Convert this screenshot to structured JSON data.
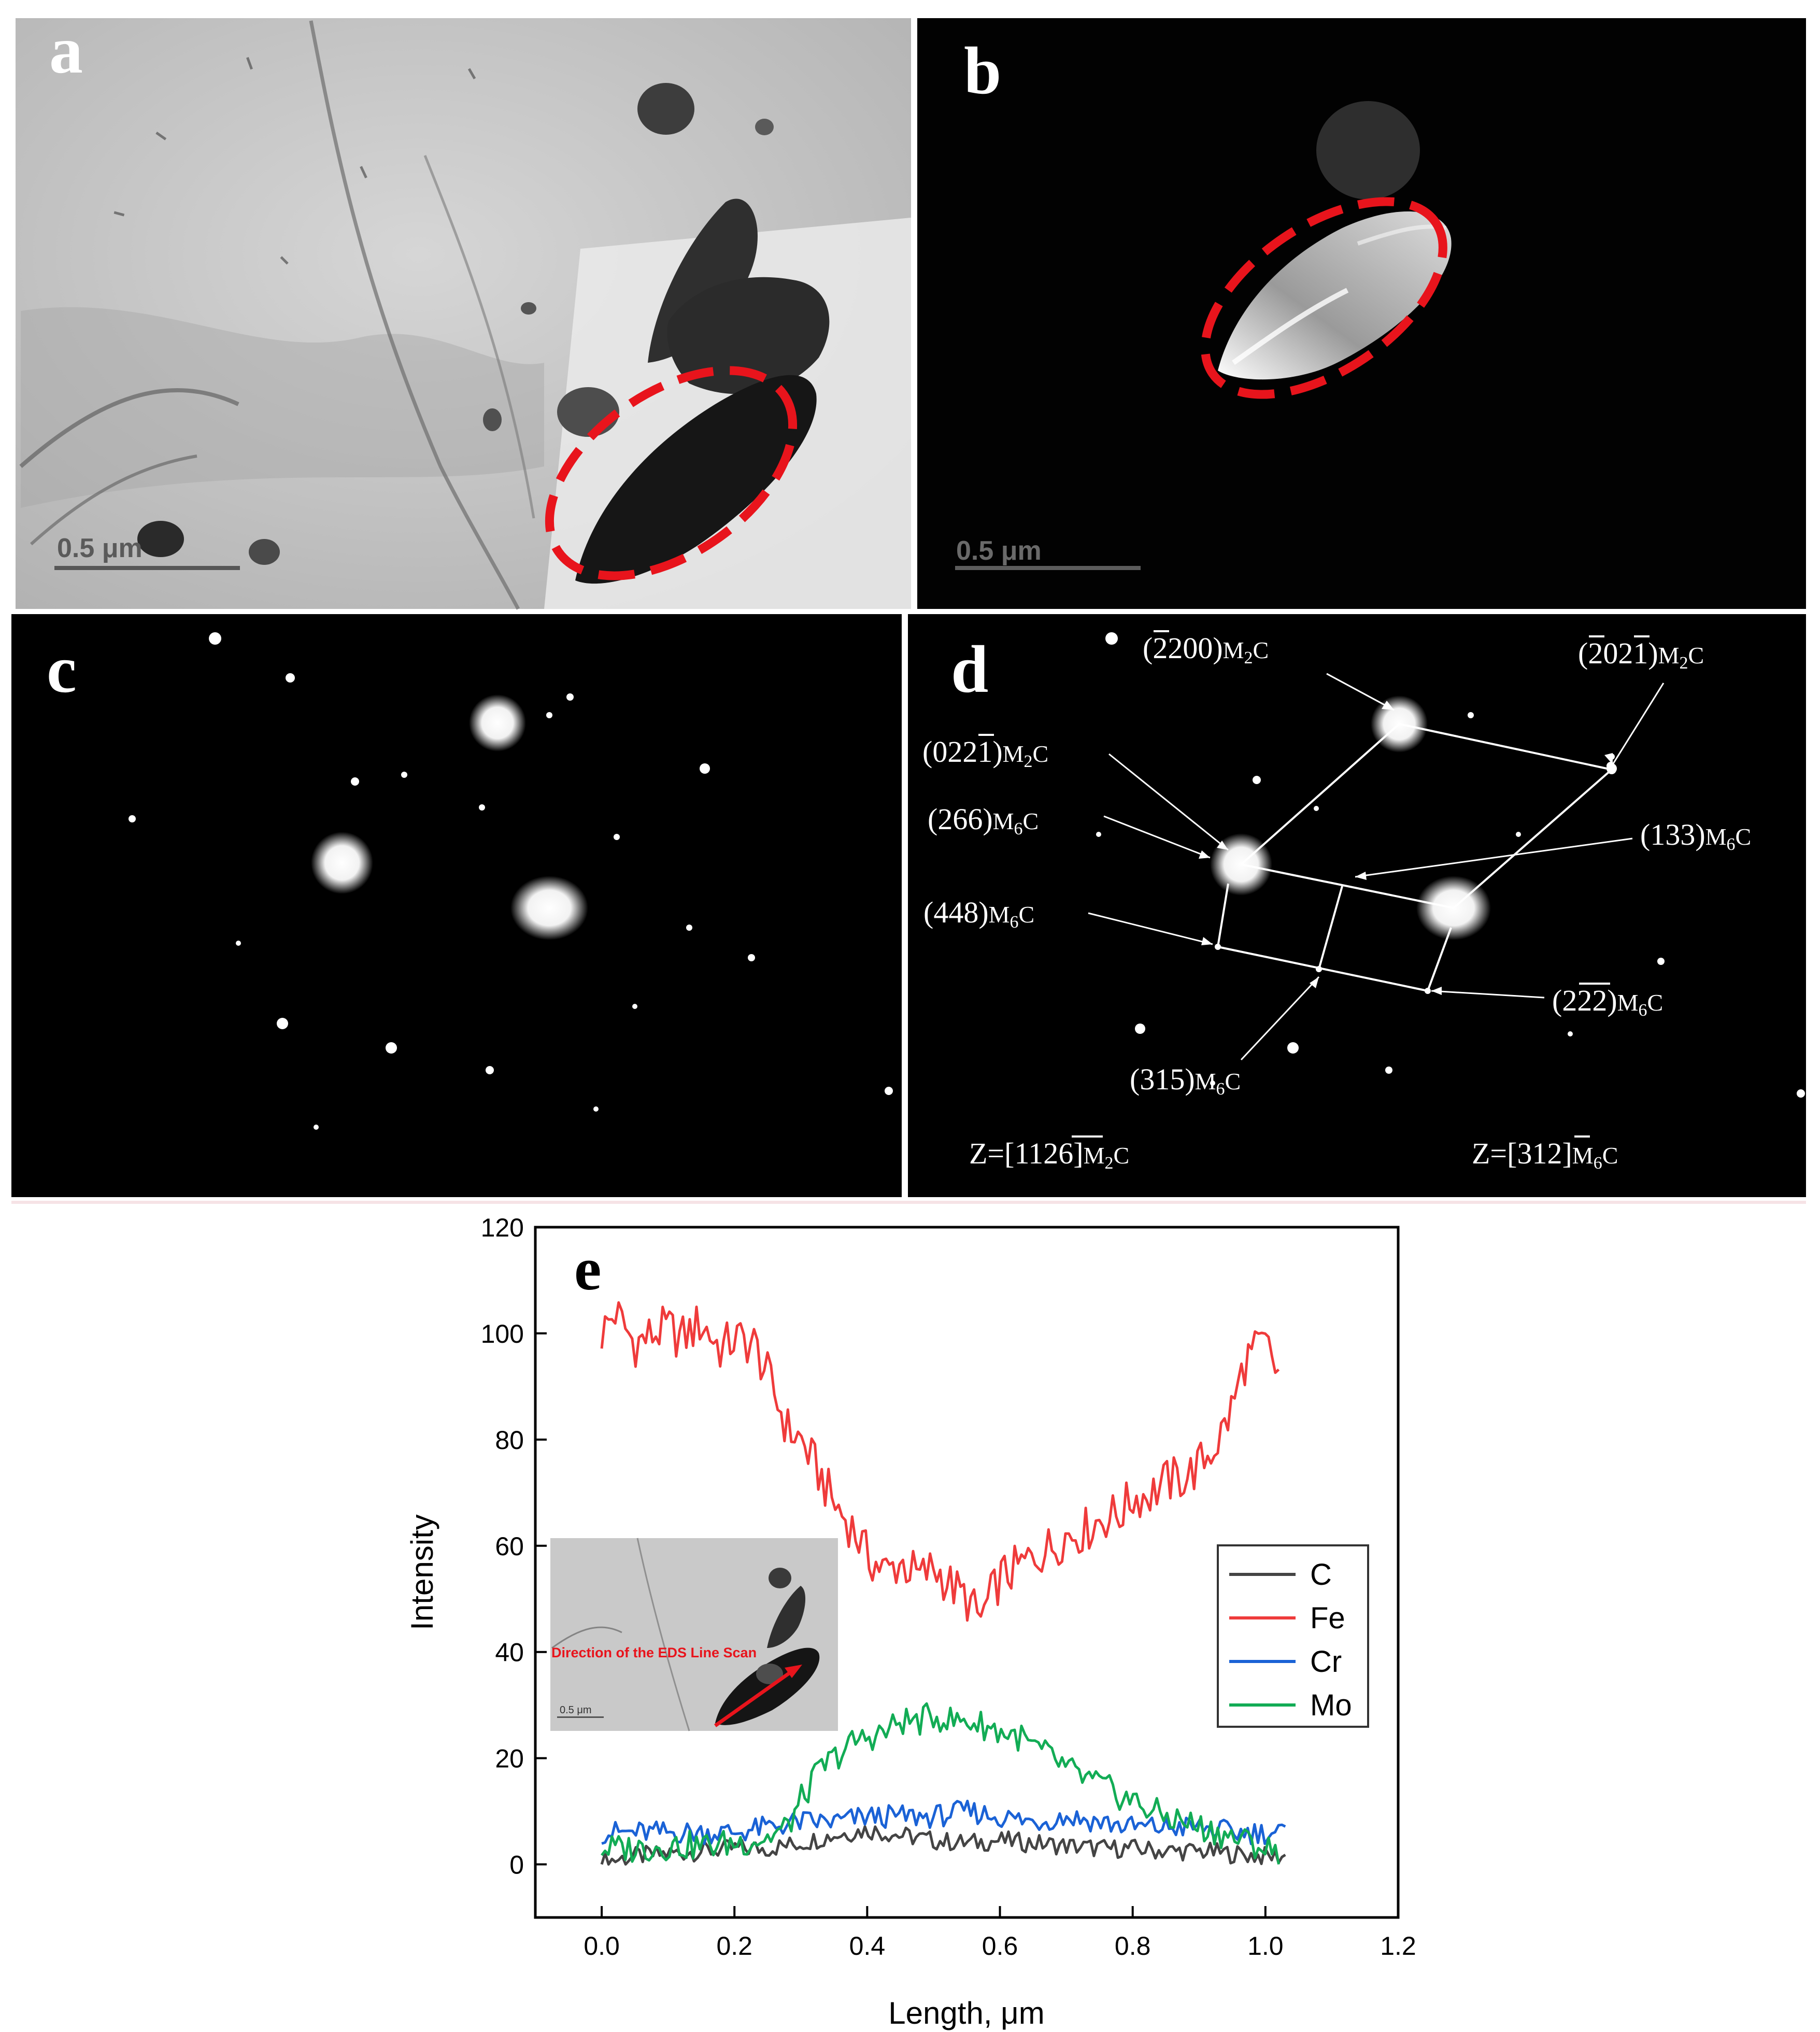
{
  "panels": {
    "a": {
      "letter": "a",
      "scalebar": "0.5 μm"
    },
    "b": {
      "letter": "b",
      "scalebar": "0.5 μm"
    },
    "c": {
      "letter": "c"
    },
    "d": {
      "letter": "d",
      "labels": {
        "l2200": "(2200)",
        "l2021": "(2021)",
        "l0221": "(0221)",
        "l266": "(266)",
        "l133": "(133)",
        "l448": "(448)",
        "l222": "(222)",
        "l315": "(315)",
        "zone_left": "Z=[1126]",
        "zone_right": "Z=[312]",
        "m2c_M": "M",
        "m2c_sub": "2",
        "m6c_M": "M",
        "m6c_sub": "6",
        "c": "C"
      }
    },
    "e": {
      "letter": "e"
    }
  },
  "chart_data": {
    "type": "line",
    "xlabel": "Length, μm",
    "ylabel": "Intensity",
    "xlim": [
      -0.1,
      1.2
    ],
    "ylim": [
      -10,
      120
    ],
    "xticks": [
      "0.0",
      "0.2",
      "0.4",
      "0.6",
      "0.8",
      "1.0",
      "1.2"
    ],
    "yticks": [
      "0",
      "20",
      "40",
      "60",
      "80",
      "100",
      "120"
    ],
    "legend_position": "right",
    "inset_annotation": "Direction of the EDS Line Scan",
    "inset_scalebar": "0.5 μm",
    "series": [
      {
        "name": "C",
        "color": "#444444",
        "x": [
          0.0,
          0.05,
          0.1,
          0.15,
          0.2,
          0.25,
          0.3,
          0.35,
          0.4,
          0.45,
          0.5,
          0.55,
          0.6,
          0.65,
          0.7,
          0.75,
          0.8,
          0.85,
          0.9,
          0.95,
          1.0,
          1.03
        ],
        "y": [
          0.5,
          1.5,
          2.0,
          2.5,
          3.0,
          3.0,
          4.0,
          5.5,
          6.5,
          5.5,
          4.5,
          4.0,
          4.5,
          4.0,
          3.5,
          3.0,
          3.0,
          2.5,
          2.5,
          2.0,
          1.5,
          1.5
        ]
      },
      {
        "name": "Fe",
        "color": "#ef3b3b",
        "x": [
          0.0,
          0.02,
          0.05,
          0.08,
          0.1,
          0.12,
          0.15,
          0.18,
          0.2,
          0.23,
          0.25,
          0.28,
          0.3,
          0.33,
          0.35,
          0.38,
          0.4,
          0.43,
          0.45,
          0.48,
          0.5,
          0.53,
          0.55,
          0.57,
          0.6,
          0.63,
          0.65,
          0.68,
          0.7,
          0.73,
          0.75,
          0.78,
          0.8,
          0.83,
          0.85,
          0.88,
          0.9,
          0.93,
          0.95,
          0.97,
          1.0,
          1.02
        ],
        "y": [
          100,
          104,
          98,
          100,
          101,
          99,
          102,
          97,
          99,
          98,
          92,
          82,
          80,
          73,
          68,
          63,
          58,
          55,
          57,
          54,
          56,
          52,
          50,
          46,
          54,
          56,
          58,
          60,
          62,
          63,
          65,
          66,
          69,
          70,
          72,
          73,
          75,
          80,
          86,
          95,
          98,
          92
        ]
      },
      {
        "name": "Cr",
        "color": "#1a62d6",
        "x": [
          0.0,
          0.05,
          0.1,
          0.15,
          0.2,
          0.25,
          0.3,
          0.35,
          0.4,
          0.45,
          0.5,
          0.55,
          0.6,
          0.65,
          0.7,
          0.75,
          0.8,
          0.85,
          0.9,
          0.95,
          1.0,
          1.03
        ],
        "y": [
          6,
          6,
          6,
          6,
          6,
          7,
          8,
          8,
          9,
          9,
          9,
          10,
          9,
          8,
          9,
          8,
          7,
          7,
          7,
          6,
          6,
          6
        ]
      },
      {
        "name": "Mo",
        "color": "#12ac55",
        "x": [
          0.0,
          0.05,
          0.1,
          0.15,
          0.2,
          0.25,
          0.28,
          0.3,
          0.33,
          0.35,
          0.38,
          0.4,
          0.43,
          0.45,
          0.48,
          0.5,
          0.53,
          0.55,
          0.58,
          0.6,
          0.63,
          0.65,
          0.68,
          0.7,
          0.73,
          0.75,
          0.78,
          0.8,
          0.83,
          0.85,
          0.88,
          0.9,
          0.93,
          0.95,
          0.98,
          1.0,
          1.02
        ],
        "y": [
          3,
          3,
          3.5,
          3.5,
          4,
          5,
          7,
          12,
          18,
          20,
          23,
          24,
          25,
          27,
          27,
          28,
          27,
          27,
          26,
          25,
          24,
          22,
          20,
          18,
          16,
          15,
          13,
          12,
          10,
          9,
          8,
          7,
          6,
          5,
          4,
          3,
          2
        ]
      }
    ]
  }
}
